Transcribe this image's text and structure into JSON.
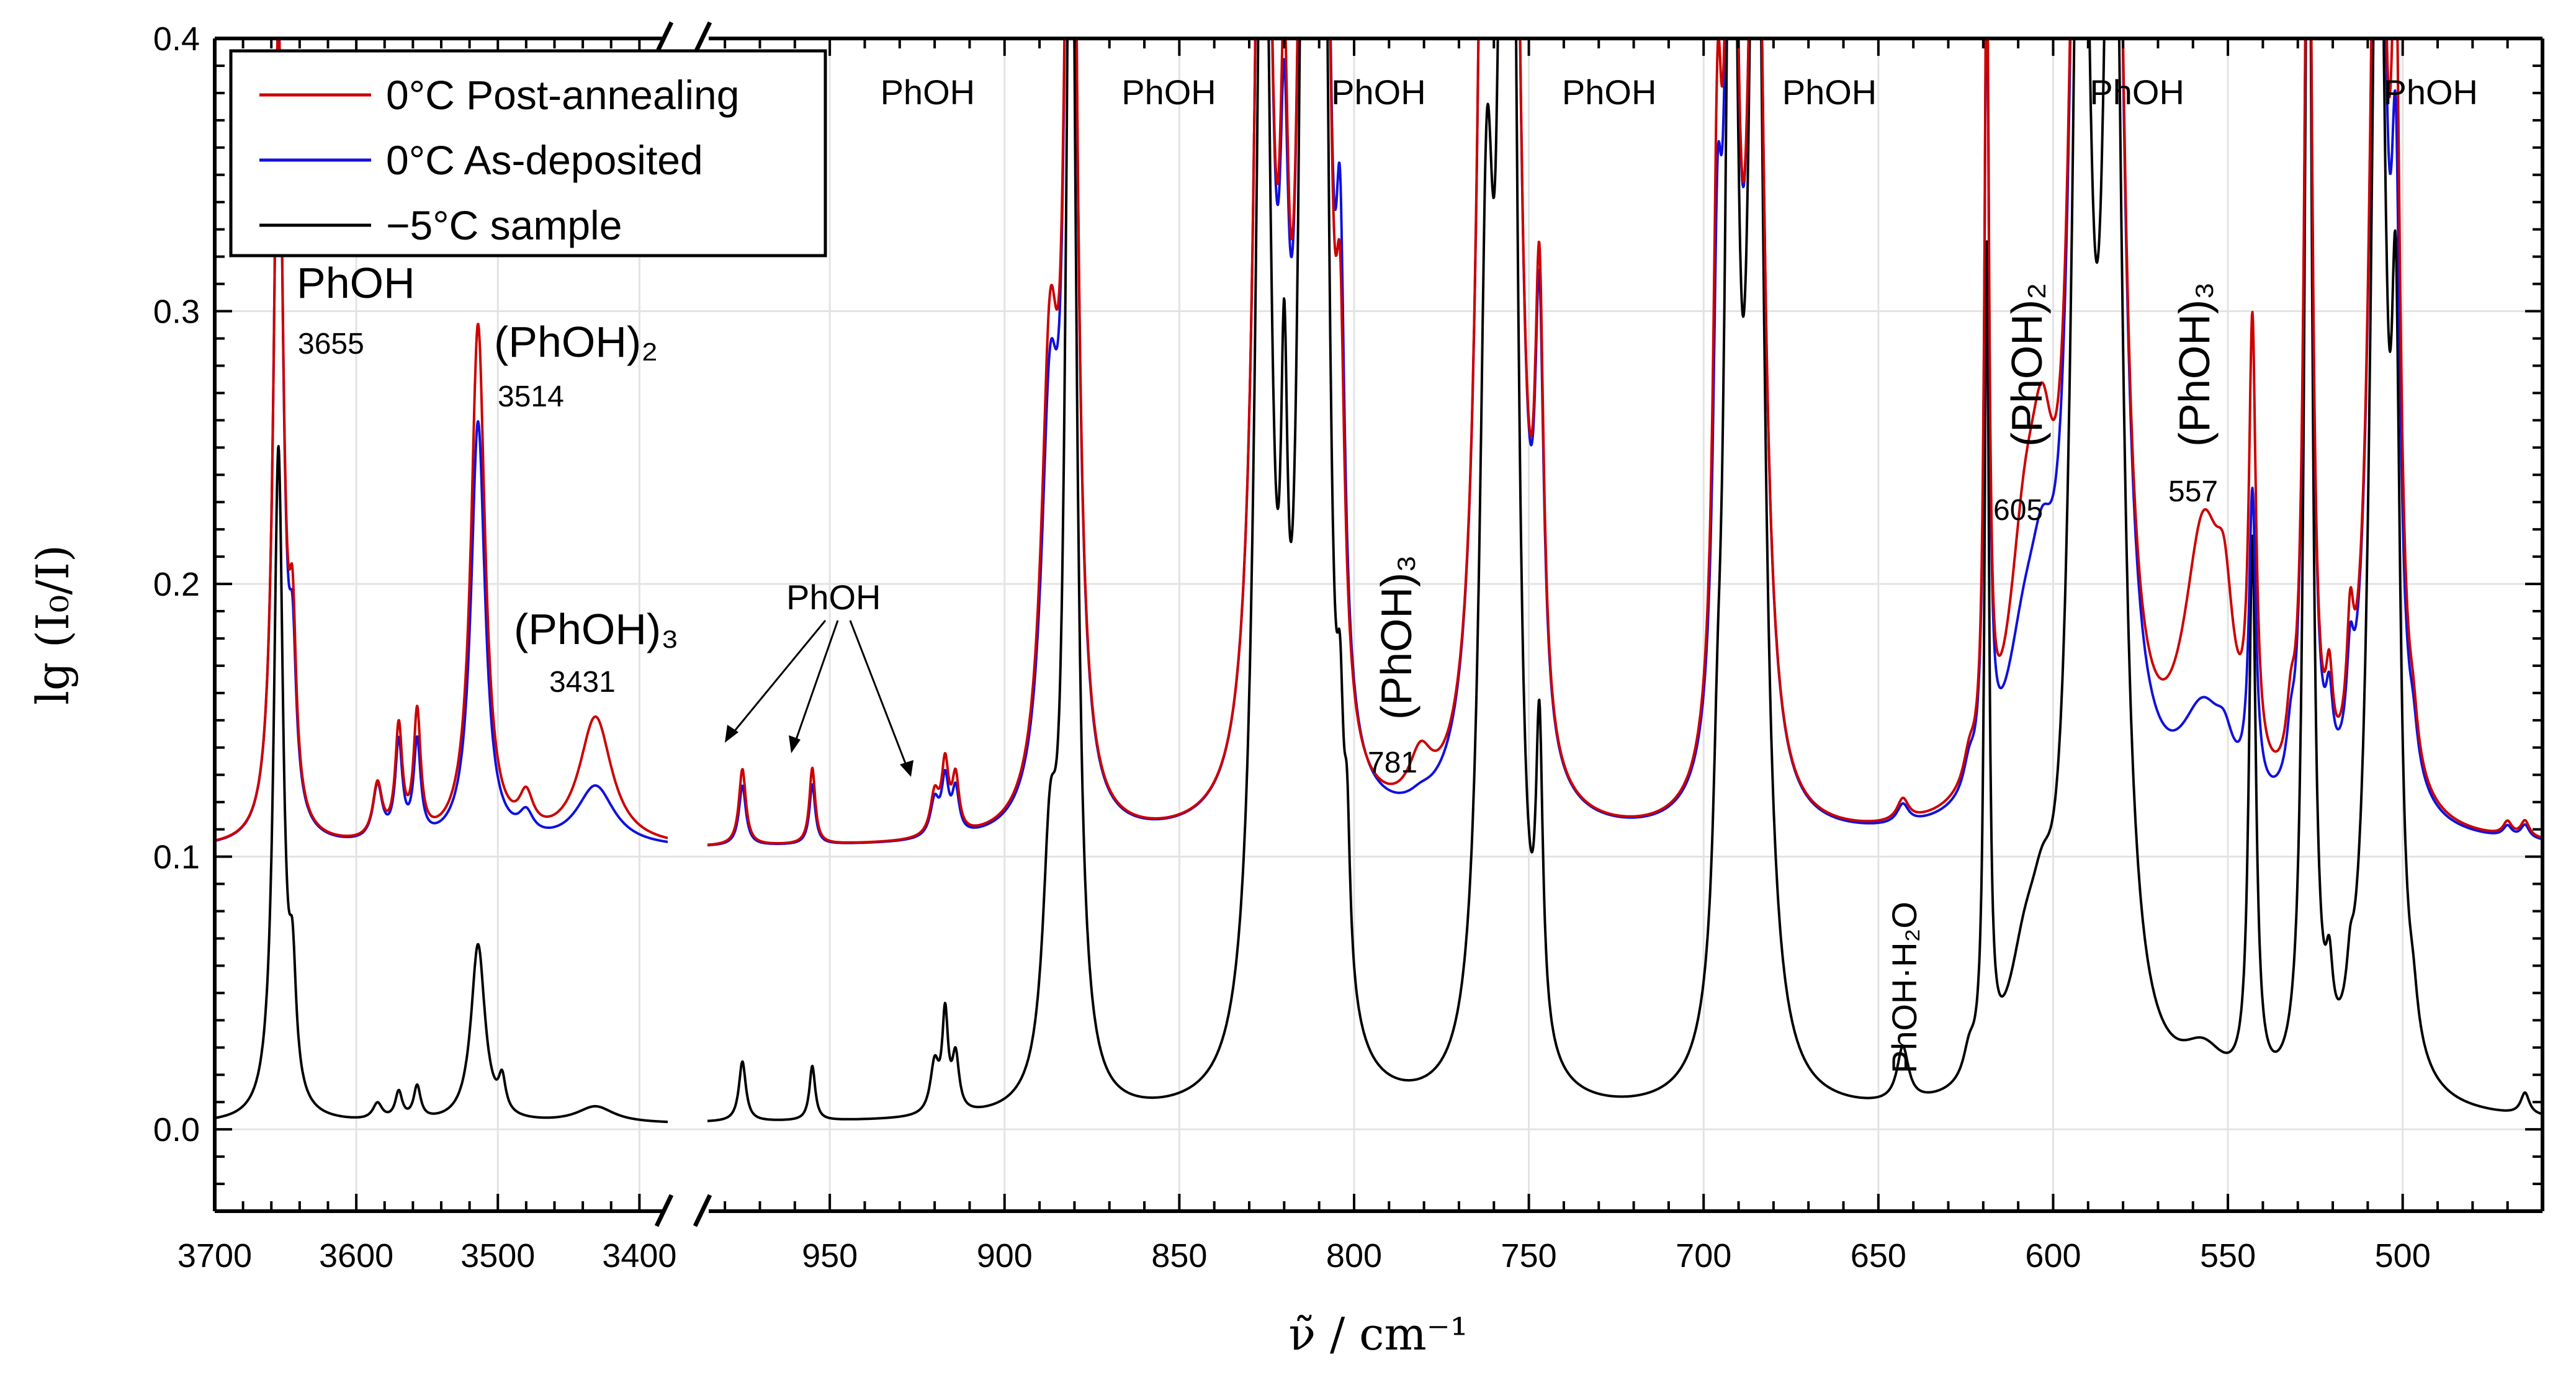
{
  "chart_data": {
    "type": "line",
    "ylabel": "lg (I₀/I)",
    "xlabel": "ν̃ / cm⁻¹",
    "ylim": [
      -0.03,
      0.4
    ],
    "y_ticks": [
      "0.0",
      "0.1",
      "0.2",
      "0.3",
      "0.4"
    ],
    "y_tick_values": [
      0.0,
      0.1,
      0.2,
      0.3,
      0.4
    ],
    "x_segments": [
      {
        "range": [
          3700,
          3380
        ],
        "ticks": [
          3700,
          3600,
          3500,
          3400
        ],
        "tick_labels": [
          "3700",
          "3600",
          "3500",
          "3400"
        ]
      },
      {
        "range": [
          985,
          460
        ],
        "ticks": [
          950,
          900,
          850,
          800,
          750,
          700,
          650,
          600,
          550,
          500
        ],
        "tick_labels": [
          "950",
          "900",
          "850",
          "800",
          "750",
          "700",
          "650",
          "600",
          "550",
          "500"
        ]
      }
    ],
    "legend": {
      "placement": "top-left",
      "entries": [
        {
          "label": "0°C Post-annealing",
          "color": "#cc0000"
        },
        {
          "label": "0°C As-deposited",
          "color": "#1010e0"
        },
        {
          "label": "−5°C sample",
          "color": "#000000"
        }
      ]
    },
    "series": [
      {
        "name": "0°C Post-annealing",
        "color": "#cc0000",
        "baseline": 0.103,
        "peaks": [
          {
            "x": 3655,
            "h": 0.3,
            "w": 4
          },
          {
            "x": 3645,
            "h": 0.06,
            "w": 3
          },
          {
            "x": 3585,
            "h": 0.02,
            "w": 4
          },
          {
            "x": 3570,
            "h": 0.04,
            "w": 3
          },
          {
            "x": 3557,
            "h": 0.045,
            "w": 3
          },
          {
            "x": 3514,
            "h": 0.19,
            "w": 6
          },
          {
            "x": 3480,
            "h": 0.013,
            "w": 6
          },
          {
            "x": 3431,
            "h": 0.047,
            "w": 14
          },
          {
            "x": 975,
            "h": 0.028,
            "w": 1.2
          },
          {
            "x": 955,
            "h": 0.028,
            "w": 1.0
          },
          {
            "x": 920,
            "h": 0.015,
            "w": 1.5
          },
          {
            "x": 917,
            "h": 0.025,
            "w": 1.2
          },
          {
            "x": 914,
            "h": 0.02,
            "w": 1.2
          },
          {
            "x": 887,
            "h": 0.16,
            "w": 3
          },
          {
            "x": 881,
            "h": 0.5,
            "w": 1.8
          },
          {
            "x": 826,
            "h": 0.5,
            "w": 2.5
          },
          {
            "x": 820,
            "h": 0.17,
            "w": 1.5
          },
          {
            "x": 814,
            "h": 0.45,
            "w": 2
          },
          {
            "x": 809,
            "h": 0.5,
            "w": 2
          },
          {
            "x": 804,
            "h": 0.12,
            "w": 1.5
          },
          {
            "x": 781,
            "h": 0.018,
            "w": 4
          },
          {
            "x": 762,
            "h": 0.5,
            "w": 2.5
          },
          {
            "x": 755,
            "h": 0.5,
            "w": 2.5
          },
          {
            "x": 747,
            "h": 0.16,
            "w": 1.5
          },
          {
            "x": 696,
            "h": 0.19,
            "w": 1.5
          },
          {
            "x": 692,
            "h": 0.4,
            "w": 2
          },
          {
            "x": 685,
            "h": 0.4,
            "w": 2.5
          },
          {
            "x": 643,
            "h": 0.008,
            "w": 2
          },
          {
            "x": 624,
            "h": 0.01,
            "w": 2
          },
          {
            "x": 619,
            "h": 0.3,
            "w": 0.8
          },
          {
            "x": 608,
            "h": 0.085,
            "w": 6
          },
          {
            "x": 603,
            "h": 0.07,
            "w": 4
          },
          {
            "x": 592,
            "h": 0.5,
            "w": 3
          },
          {
            "x": 583,
            "h": 0.5,
            "w": 3
          },
          {
            "x": 557,
            "h": 0.1,
            "w": 7
          },
          {
            "x": 551,
            "h": 0.04,
            "w": 3
          },
          {
            "x": 543,
            "h": 0.16,
            "w": 1.2
          },
          {
            "x": 532,
            "h": 0.02,
            "w": 1.5
          },
          {
            "x": 527,
            "h": 0.4,
            "w": 1.3
          },
          {
            "x": 521,
            "h": 0.03,
            "w": 1.2
          },
          {
            "x": 515,
            "h": 0.04,
            "w": 1.2
          },
          {
            "x": 507,
            "h": 0.45,
            "w": 2.5
          },
          {
            "x": 502,
            "h": 0.24,
            "w": 1.5
          },
          {
            "x": 497,
            "h": 0.013,
            "w": 1.5
          },
          {
            "x": 470,
            "h": 0.005,
            "w": 1.5
          },
          {
            "x": 465,
            "h": 0.006,
            "w": 1.5
          }
        ]
      },
      {
        "name": "0°C As-deposited",
        "color": "#1010e0",
        "baseline": 0.103,
        "peaks": [
          {
            "x": 3655,
            "h": 0.3,
            "w": 4
          },
          {
            "x": 3645,
            "h": 0.05,
            "w": 3
          },
          {
            "x": 3585,
            "h": 0.02,
            "w": 4
          },
          {
            "x": 3570,
            "h": 0.035,
            "w": 3
          },
          {
            "x": 3557,
            "h": 0.035,
            "w": 3
          },
          {
            "x": 3514,
            "h": 0.155,
            "w": 6
          },
          {
            "x": 3480,
            "h": 0.008,
            "w": 6
          },
          {
            "x": 3431,
            "h": 0.022,
            "w": 16
          },
          {
            "x": 975,
            "h": 0.022,
            "w": 1.2
          },
          {
            "x": 955,
            "h": 0.022,
            "w": 1.0
          },
          {
            "x": 920,
            "h": 0.013,
            "w": 1.5
          },
          {
            "x": 917,
            "h": 0.02,
            "w": 1.2
          },
          {
            "x": 914,
            "h": 0.016,
            "w": 1.2
          },
          {
            "x": 887,
            "h": 0.14,
            "w": 3
          },
          {
            "x": 881,
            "h": 0.5,
            "w": 1.8
          },
          {
            "x": 826,
            "h": 0.5,
            "w": 2.5
          },
          {
            "x": 820,
            "h": 0.15,
            "w": 1.5
          },
          {
            "x": 814,
            "h": 0.45,
            "w": 2
          },
          {
            "x": 809,
            "h": 0.5,
            "w": 2
          },
          {
            "x": 804,
            "h": 0.15,
            "w": 1.5
          },
          {
            "x": 781,
            "h": 0.003,
            "w": 4
          },
          {
            "x": 762,
            "h": 0.5,
            "w": 2.5
          },
          {
            "x": 755,
            "h": 0.5,
            "w": 2.5
          },
          {
            "x": 747,
            "h": 0.15,
            "w": 1.5
          },
          {
            "x": 696,
            "h": 0.15,
            "w": 1.5
          },
          {
            "x": 692,
            "h": 0.4,
            "w": 2
          },
          {
            "x": 685,
            "h": 0.4,
            "w": 2.5
          },
          {
            "x": 643,
            "h": 0.007,
            "w": 2
          },
          {
            "x": 624,
            "h": 0.01,
            "w": 2
          },
          {
            "x": 619,
            "h": 0.3,
            "w": 0.8
          },
          {
            "x": 608,
            "h": 0.055,
            "w": 7
          },
          {
            "x": 603,
            "h": 0.04,
            "w": 4
          },
          {
            "x": 592,
            "h": 0.5,
            "w": 3
          },
          {
            "x": 583,
            "h": 0.5,
            "w": 3
          },
          {
            "x": 557,
            "h": 0.038,
            "w": 8
          },
          {
            "x": 551,
            "h": 0.012,
            "w": 3
          },
          {
            "x": 543,
            "h": 0.11,
            "w": 1.2
          },
          {
            "x": 532,
            "h": 0.015,
            "w": 1.5
          },
          {
            "x": 527,
            "h": 0.4,
            "w": 1.3
          },
          {
            "x": 521,
            "h": 0.025,
            "w": 1.2
          },
          {
            "x": 515,
            "h": 0.03,
            "w": 1.2
          },
          {
            "x": 507,
            "h": 0.45,
            "w": 2.5
          },
          {
            "x": 502,
            "h": 0.18,
            "w": 1.5
          },
          {
            "x": 497,
            "h": 0.012,
            "w": 1.5
          },
          {
            "x": 470,
            "h": 0.004,
            "w": 1.5
          },
          {
            "x": 465,
            "h": 0.005,
            "w": 1.5
          }
        ]
      },
      {
        "name": "−5°C sample",
        "color": "#000000",
        "baseline": 0.002,
        "peaks": [
          {
            "x": 3655,
            "h": 0.245,
            "w": 4
          },
          {
            "x": 3645,
            "h": 0.04,
            "w": 3
          },
          {
            "x": 3585,
            "h": 0.006,
            "w": 4
          },
          {
            "x": 3570,
            "h": 0.01,
            "w": 3
          },
          {
            "x": 3557,
            "h": 0.012,
            "w": 3
          },
          {
            "x": 3514,
            "h": 0.065,
            "w": 6
          },
          {
            "x": 3497,
            "h": 0.012,
            "w": 3
          },
          {
            "x": 3431,
            "h": 0.006,
            "w": 16
          },
          {
            "x": 975,
            "h": 0.022,
            "w": 1.2
          },
          {
            "x": 955,
            "h": 0.02,
            "w": 1.0
          },
          {
            "x": 920,
            "h": 0.018,
            "w": 1.5
          },
          {
            "x": 917,
            "h": 0.035,
            "w": 1.0
          },
          {
            "x": 914,
            "h": 0.02,
            "w": 1.2
          },
          {
            "x": 887,
            "h": 0.08,
            "w": 2.5
          },
          {
            "x": 881,
            "h": 0.5,
            "w": 1.8
          },
          {
            "x": 826,
            "h": 0.5,
            "w": 2.5
          },
          {
            "x": 820,
            "h": 0.16,
            "w": 1.2
          },
          {
            "x": 814,
            "h": 0.5,
            "w": 2
          },
          {
            "x": 809,
            "h": 0.5,
            "w": 2
          },
          {
            "x": 804,
            "h": 0.07,
            "w": 1.2
          },
          {
            "x": 802,
            "h": 0.05,
            "w": 1.0
          },
          {
            "x": 762,
            "h": 0.3,
            "w": 2.5
          },
          {
            "x": 758,
            "h": 0.23,
            "w": 1.5
          },
          {
            "x": 755,
            "h": 0.5,
            "w": 2.0
          },
          {
            "x": 747,
            "h": 0.11,
            "w": 1.2
          },
          {
            "x": 696,
            "h": 0.05,
            "w": 1.5
          },
          {
            "x": 692,
            "h": 0.5,
            "w": 2
          },
          {
            "x": 685,
            "h": 0.5,
            "w": 2.5
          },
          {
            "x": 643,
            "h": 0.02,
            "w": 2
          },
          {
            "x": 624,
            "h": 0.01,
            "w": 2
          },
          {
            "x": 619,
            "h": 0.3,
            "w": 0.8
          },
          {
            "x": 608,
            "h": 0.04,
            "w": 6
          },
          {
            "x": 603,
            "h": 0.03,
            "w": 4
          },
          {
            "x": 592,
            "h": 0.5,
            "w": 3
          },
          {
            "x": 583,
            "h": 0.5,
            "w": 3
          },
          {
            "x": 557,
            "h": 0.016,
            "w": 8
          },
          {
            "x": 543,
            "h": 0.2,
            "w": 1.2
          },
          {
            "x": 527,
            "h": 0.5,
            "w": 1.3
          },
          {
            "x": 521,
            "h": 0.025,
            "w": 1.2
          },
          {
            "x": 515,
            "h": 0.015,
            "w": 1.2
          },
          {
            "x": 507,
            "h": 0.5,
            "w": 2.5
          },
          {
            "x": 502,
            "h": 0.22,
            "w": 1.5
          },
          {
            "x": 497,
            "h": 0.012,
            "w": 1.5
          },
          {
            "x": 465,
            "h": 0.008,
            "w": 1.5
          }
        ]
      }
    ],
    "annotations": {
      "top_band_labels": [
        {
          "text": "PhOH",
          "x": 922
        },
        {
          "text": "PhOH",
          "x": 853
        },
        {
          "text": "PhOH",
          "x": 793
        },
        {
          "text": "PhOH",
          "x": 727
        },
        {
          "text": "PhOH",
          "x": 664
        },
        {
          "text": "PhOH",
          "x": 576
        },
        {
          "text": "PhOH",
          "x": 492
        }
      ],
      "phoh_3655_label": "PhOH",
      "phoh_3655_value": "3655",
      "dimer_3514_label": "(PhOH)₂",
      "dimer_3514_value": "3514",
      "trimer_3431_label": "(PhOH)₃",
      "trimer_3431_value": "3431",
      "phoh_arrows_label": "PhOH",
      "trimer_781_label": "(PhOH)₃",
      "trimer_781_value": "781",
      "hydrate_label": "PhOH·H₂O",
      "dimer_605_label": "(PhOH)₂",
      "dimer_605_value": "605",
      "trimer_557_label": "(PhOH)₃",
      "trimer_557_value": "557"
    }
  }
}
